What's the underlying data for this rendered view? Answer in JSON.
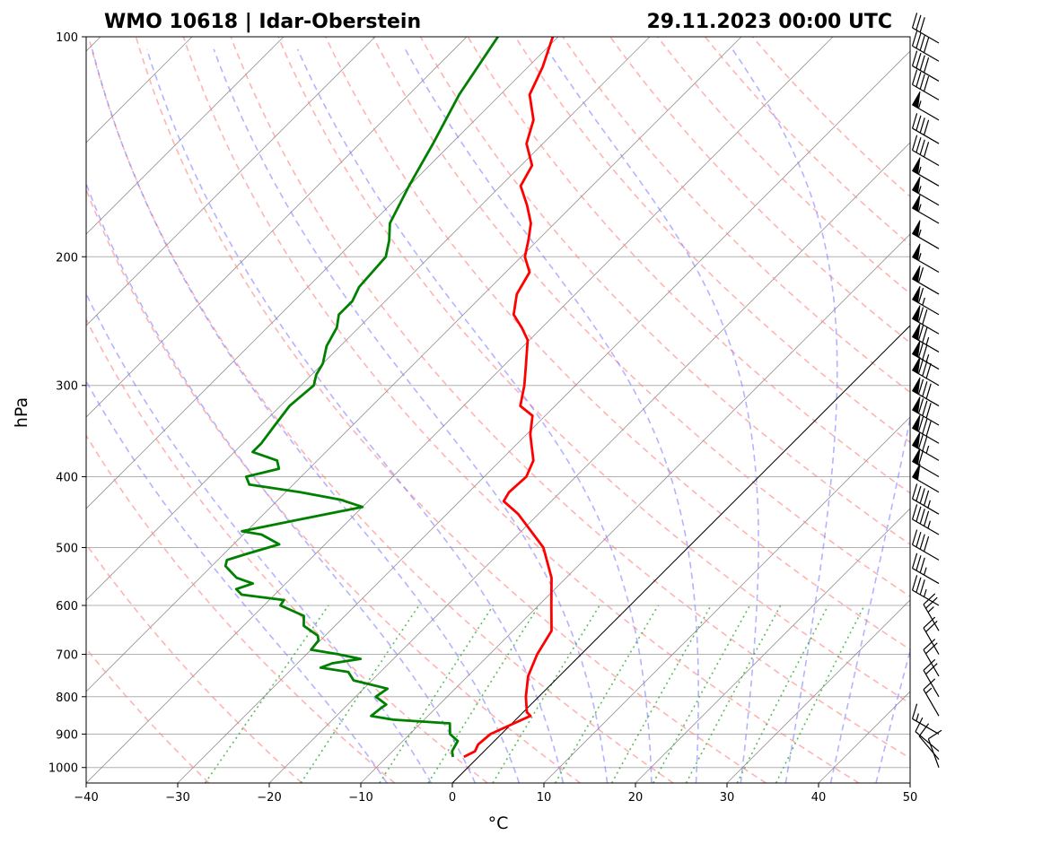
{
  "chart_data": {
    "type": "line",
    "title_left": "WMO 10618 | Idar-Oberstein",
    "title_right": "29.11.2023 00:00 UTC",
    "xlabel": "°C",
    "ylabel": "hPa",
    "xlim": [
      -40,
      50
    ],
    "ylim": [
      1050,
      100
    ],
    "x_ticks": [
      -40,
      -30,
      -20,
      -10,
      0,
      10,
      20,
      30,
      40,
      50
    ],
    "x_tick_labels": [
      "−40",
      "−30",
      "−20",
      "−10",
      "0",
      "10",
      "20",
      "30",
      "40",
      "50"
    ],
    "y_ticks": [
      1000,
      900,
      800,
      700,
      600,
      500,
      400,
      300,
      200,
      100
    ],
    "y_tick_labels": [
      "1000",
      "900",
      "800",
      "700",
      "600",
      "500",
      "400",
      "300",
      "200",
      "100"
    ],
    "skew": 45,
    "series": [
      {
        "name": "Temperature",
        "color": "#ff0000",
        "points": [
          [
            967,
            -1.6
          ],
          [
            950,
            -1.0
          ],
          [
            930,
            -1.4
          ],
          [
            900,
            -1.2
          ],
          [
            870,
            0.2
          ],
          [
            850,
            1.2
          ],
          [
            840,
            0.4
          ],
          [
            800,
            -1.4
          ],
          [
            750,
            -3.4
          ],
          [
            700,
            -4.8
          ],
          [
            650,
            -5.8
          ],
          [
            600,
            -8.6
          ],
          [
            550,
            -11.6
          ],
          [
            500,
            -15.8
          ],
          [
            450,
            -22.2
          ],
          [
            432,
            -25.2
          ],
          [
            420,
            -25.6
          ],
          [
            400,
            -25.4
          ],
          [
            380,
            -26.4
          ],
          [
            350,
            -29.6
          ],
          [
            330,
            -31.4
          ],
          [
            320,
            -33.8
          ],
          [
            300,
            -35.6
          ],
          [
            280,
            -37.8
          ],
          [
            260,
            -40.2
          ],
          [
            250,
            -42.2
          ],
          [
            240,
            -44.5
          ],
          [
            225,
            -46.4
          ],
          [
            210,
            -47.4
          ],
          [
            200,
            -49.6
          ],
          [
            190,
            -51.0
          ],
          [
            180,
            -52.6
          ],
          [
            170,
            -55.0
          ],
          [
            160,
            -57.8
          ],
          [
            150,
            -58.8
          ],
          [
            140,
            -61.8
          ],
          [
            130,
            -63.6
          ],
          [
            120,
            -66.8
          ],
          [
            110,
            -68.4
          ],
          [
            100,
            -70.6
          ]
        ]
      },
      {
        "name": "Dewpoint",
        "color": "#008000",
        "points": [
          [
            967,
            -2.8
          ],
          [
            950,
            -3.5
          ],
          [
            920,
            -4.0
          ],
          [
            900,
            -5.6
          ],
          [
            870,
            -6.8
          ],
          [
            860,
            -13.4
          ],
          [
            850,
            -16.2
          ],
          [
            830,
            -16.0
          ],
          [
            820,
            -15.8
          ],
          [
            800,
            -17.8
          ],
          [
            780,
            -17.4
          ],
          [
            760,
            -22.0
          ],
          [
            740,
            -23.5
          ],
          [
            730,
            -27.0
          ],
          [
            720,
            -26.2
          ],
          [
            710,
            -23.6
          ],
          [
            700,
            -26.5
          ],
          [
            690,
            -30.0
          ],
          [
            670,
            -30.2
          ],
          [
            660,
            -30.8
          ],
          [
            640,
            -33.4
          ],
          [
            620,
            -34.5
          ],
          [
            600,
            -38.2
          ],
          [
            590,
            -38.4
          ],
          [
            580,
            -43.6
          ],
          [
            570,
            -44.8
          ],
          [
            560,
            -43.6
          ],
          [
            550,
            -46.0
          ],
          [
            530,
            -48.5
          ],
          [
            520,
            -49.0
          ],
          [
            510,
            -47.5
          ],
          [
            495,
            -45.0
          ],
          [
            480,
            -48.0
          ],
          [
            475,
            -50.5
          ],
          [
            460,
            -46.2
          ],
          [
            440,
            -40.0
          ],
          [
            430,
            -43.2
          ],
          [
            420,
            -48.4
          ],
          [
            410,
            -54.8
          ],
          [
            400,
            -56.0
          ],
          [
            390,
            -53.3
          ],
          [
            380,
            -54.4
          ],
          [
            370,
            -58.0
          ],
          [
            360,
            -58.0
          ],
          [
            340,
            -58.5
          ],
          [
            320,
            -59.0
          ],
          [
            300,
            -58.6
          ],
          [
            290,
            -59.5
          ],
          [
            280,
            -60.0
          ],
          [
            265,
            -61.5
          ],
          [
            250,
            -62.4
          ],
          [
            240,
            -63.6
          ],
          [
            230,
            -63.6
          ],
          [
            220,
            -64.4
          ],
          [
            200,
            -64.8
          ],
          [
            190,
            -66.2
          ],
          [
            180,
            -68.0
          ],
          [
            160,
            -70.0
          ],
          [
            140,
            -72.0
          ],
          [
            120,
            -74.5
          ],
          [
            100,
            -76.6
          ]
        ]
      }
    ],
    "wind_barbs": [
      {
        "p": 1000,
        "speed_kt": 10,
        "dir_deg": 340
      },
      {
        "p": 975,
        "speed_kt": 10,
        "dir_deg": 320
      },
      {
        "p": 950,
        "speed_kt": 10,
        "dir_deg": 310
      },
      {
        "p": 900,
        "speed_kt": 15,
        "dir_deg": 300
      },
      {
        "p": 850,
        "speed_kt": 15,
        "dir_deg": 330
      },
      {
        "p": 800,
        "speed_kt": 20,
        "dir_deg": 330
      },
      {
        "p": 750,
        "speed_kt": 20,
        "dir_deg": 330
      },
      {
        "p": 700,
        "speed_kt": 20,
        "dir_deg": 330
      },
      {
        "p": 650,
        "speed_kt": 25,
        "dir_deg": 330
      },
      {
        "p": 600,
        "speed_kt": 35,
        "dir_deg": 300
      },
      {
        "p": 560,
        "speed_kt": 35,
        "dir_deg": 300
      },
      {
        "p": 520,
        "speed_kt": 40,
        "dir_deg": 300
      },
      {
        "p": 480,
        "speed_kt": 45,
        "dir_deg": 300
      },
      {
        "p": 450,
        "speed_kt": 45,
        "dir_deg": 300
      },
      {
        "p": 420,
        "speed_kt": 50,
        "dir_deg": 300
      },
      {
        "p": 400,
        "speed_kt": 60,
        "dir_deg": 300
      },
      {
        "p": 380,
        "speed_kt": 75,
        "dir_deg": 300
      },
      {
        "p": 360,
        "speed_kt": 80,
        "dir_deg": 300
      },
      {
        "p": 340,
        "speed_kt": 80,
        "dir_deg": 300
      },
      {
        "p": 320,
        "speed_kt": 80,
        "dir_deg": 300
      },
      {
        "p": 300,
        "speed_kt": 80,
        "dir_deg": 300
      },
      {
        "p": 285,
        "speed_kt": 75,
        "dir_deg": 300
      },
      {
        "p": 270,
        "speed_kt": 75,
        "dir_deg": 300
      },
      {
        "p": 255,
        "speed_kt": 70,
        "dir_deg": 300
      },
      {
        "p": 240,
        "speed_kt": 65,
        "dir_deg": 300
      },
      {
        "p": 225,
        "speed_kt": 60,
        "dir_deg": 300
      },
      {
        "p": 210,
        "speed_kt": 55,
        "dir_deg": 300
      },
      {
        "p": 195,
        "speed_kt": 55,
        "dir_deg": 300
      },
      {
        "p": 180,
        "speed_kt": 55,
        "dir_deg": 300
      },
      {
        "p": 170,
        "speed_kt": 55,
        "dir_deg": 300
      },
      {
        "p": 160,
        "speed_kt": 55,
        "dir_deg": 300
      },
      {
        "p": 150,
        "speed_kt": 40,
        "dir_deg": 300
      },
      {
        "p": 140,
        "speed_kt": 40,
        "dir_deg": 300
      },
      {
        "p": 130,
        "speed_kt": 55,
        "dir_deg": 300
      },
      {
        "p": 122,
        "speed_kt": 40,
        "dir_deg": 300
      },
      {
        "p": 115,
        "speed_kt": 40,
        "dir_deg": 300
      },
      {
        "p": 108,
        "speed_kt": 40,
        "dir_deg": 300
      },
      {
        "p": 102,
        "speed_kt": 30,
        "dir_deg": 300
      }
    ],
    "dry_adiabats_c": [
      -30,
      -20,
      -10,
      0,
      10,
      20,
      30,
      40,
      50,
      60,
      70,
      80,
      90,
      100,
      110,
      120,
      130,
      140,
      150,
      160
    ],
    "moist_adiabats_c": [
      -10,
      -5,
      0,
      5,
      10,
      15,
      20,
      25,
      30,
      35,
      40,
      45
    ],
    "mixing_ratios_gkg": [
      0.4,
      1,
      2,
      3,
      5,
      8,
      12,
      16,
      20,
      28,
      36
    ],
    "colors": {
      "grid": "#b0b0b0",
      "isotherm": "#808080",
      "dry_adiabat": "#ff8080",
      "moist_adiabat": "#8080ff",
      "mixing_ratio": "#33aa33",
      "zero_isotherm": "#000000"
    }
  }
}
